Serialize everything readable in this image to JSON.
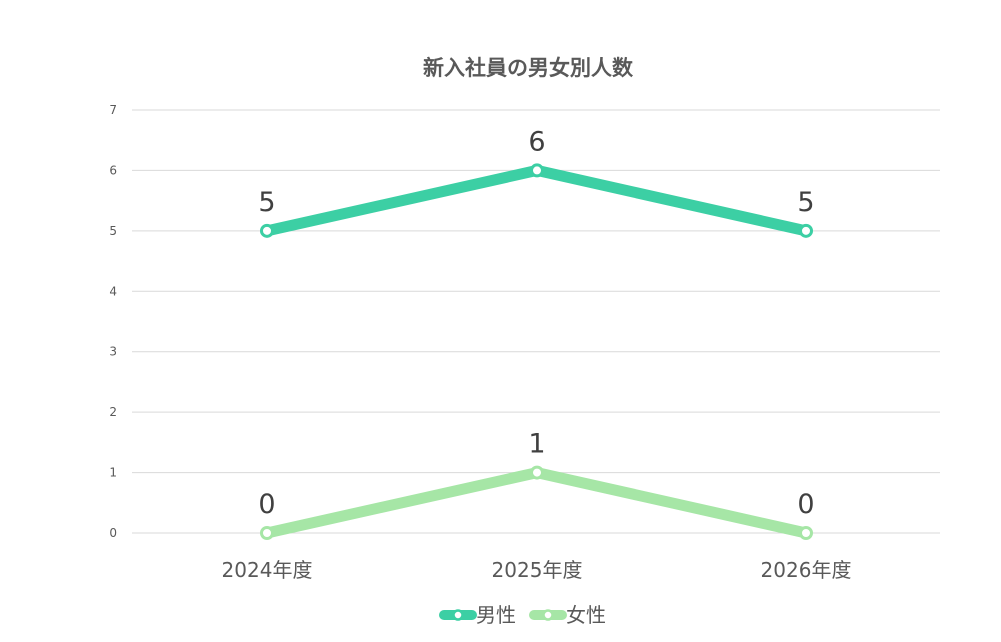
{
  "chart_data": {
    "type": "line",
    "title": "新入社員の男女別人数",
    "categories": [
      "2024年度",
      "2025年度",
      "2026年度"
    ],
    "series": [
      {
        "name": "男性",
        "values": [
          5,
          6,
          5
        ],
        "color": "#3ccfa4"
      },
      {
        "name": "女性",
        "values": [
          0,
          1,
          0
        ],
        "color": "#a6e6a6"
      }
    ],
    "ylim": [
      0,
      7
    ],
    "yticks": [
      0,
      1,
      2,
      3,
      4,
      5,
      6,
      7
    ],
    "grid": true,
    "legend": "bottom-center",
    "data_labels": true
  }
}
